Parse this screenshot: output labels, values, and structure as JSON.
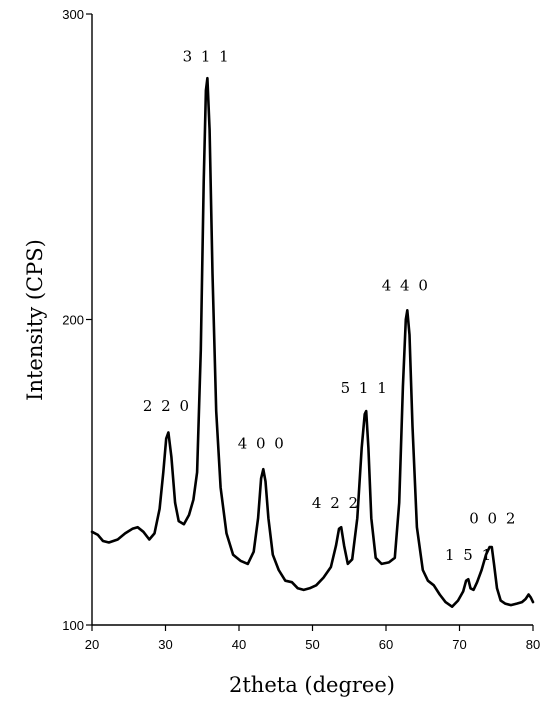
{
  "chart_data": {
    "type": "line",
    "title": "",
    "xlabel": "2theta (degree)",
    "ylabel": "Intensity (CPS)",
    "xlim": [
      20,
      80
    ],
    "ylim": [
      100,
      300
    ],
    "xticks": [
      20,
      30,
      40,
      50,
      60,
      70,
      80
    ],
    "yticks": [
      100,
      200,
      300
    ],
    "grid": false,
    "series": [
      {
        "x": [
          20,
          20.8,
          21.5,
          22.3,
          23.5,
          24.5,
          25.5,
          26.2,
          27,
          27.8,
          28.5,
          29.2,
          29.7,
          30.1,
          30.4,
          30.8,
          31.3,
          31.8,
          32.5,
          33.2,
          33.8,
          34.3,
          34.8,
          35.2,
          35.5,
          35.7,
          36.0,
          36.4,
          36.9,
          37.5,
          38.3,
          39.2,
          40.2,
          41.2,
          42.0,
          42.6,
          43.0,
          43.3,
          43.6,
          44.0,
          44.6,
          45.4,
          46.3,
          47.2,
          48.0,
          48.8,
          49.6,
          50.5,
          51.5,
          52.5,
          53.2,
          53.6,
          53.9,
          54.3,
          54.8,
          55.4,
          56.1,
          56.7,
          57.1,
          57.3,
          57.6,
          58.0,
          58.6,
          59.4,
          60.4,
          61.2,
          61.8,
          62.3,
          62.7,
          62.9,
          63.2,
          63.6,
          64.2,
          65.0,
          65.7,
          66.5,
          67.3,
          68.1,
          69.0,
          69.8,
          70.5,
          70.9,
          71.2,
          71.5,
          71.9,
          72.4,
          73.0,
          73.6,
          74.1,
          74.4,
          74.7,
          75.1,
          75.6,
          76.2,
          77.0,
          77.8,
          78.5,
          79.0,
          79.4,
          79.7,
          80.0
        ],
        "y": [
          130.5,
          129.5,
          127.5,
          127.0,
          128.0,
          130.0,
          131.5,
          132.0,
          130.5,
          128.0,
          130.0,
          138.0,
          150.0,
          161.0,
          163.0,
          155.0,
          140.0,
          134.0,
          133.0,
          136.0,
          141.0,
          150.0,
          190.0,
          245.0,
          275.0,
          279.0,
          262.0,
          215.0,
          170.0,
          145.0,
          130.0,
          123.0,
          121.0,
          120.0,
          124.0,
          135.0,
          148.0,
          151.0,
          147.0,
          135.0,
          123.0,
          118.0,
          114.5,
          114.0,
          112.0,
          111.5,
          112.0,
          113.0,
          115.5,
          119.0,
          126.0,
          131.5,
          132.0,
          126.0,
          120.0,
          121.5,
          135.0,
          158.0,
          169.0,
          170.0,
          158.0,
          135.0,
          122.0,
          120.0,
          120.5,
          122.0,
          140.0,
          178.0,
          200.0,
          203.0,
          195.0,
          165.0,
          132.0,
          118.0,
          114.5,
          113.0,
          110.0,
          107.5,
          106.0,
          108.0,
          111.0,
          114.5,
          115.0,
          112.0,
          111.5,
          114.0,
          118.0,
          123.0,
          125.5,
          125.5,
          120.0,
          112.0,
          108.0,
          107.0,
          106.5,
          107.0,
          107.5,
          108.5,
          110.0,
          109.0,
          107.5
        ]
      }
    ],
    "annotations": [
      {
        "text": "2 2 0",
        "x": 30.2,
        "y": 170.0
      },
      {
        "text": "3 1 1",
        "x": 35.6,
        "y": 284.5
      },
      {
        "text": "4 0 0",
        "x": 43.1,
        "y": 157.8
      },
      {
        "text": "4 2 2",
        "x": 53.2,
        "y": 138.3
      },
      {
        "text": "5 1 1",
        "x": 57.1,
        "y": 176.0
      },
      {
        "text": "4 4 0",
        "x": 62.7,
        "y": 209.5
      },
      {
        "text": "1 5 1",
        "x": 71.3,
        "y": 121.3
      },
      {
        "text": "0 0 2",
        "x": 74.6,
        "y": 133.3
      }
    ]
  }
}
